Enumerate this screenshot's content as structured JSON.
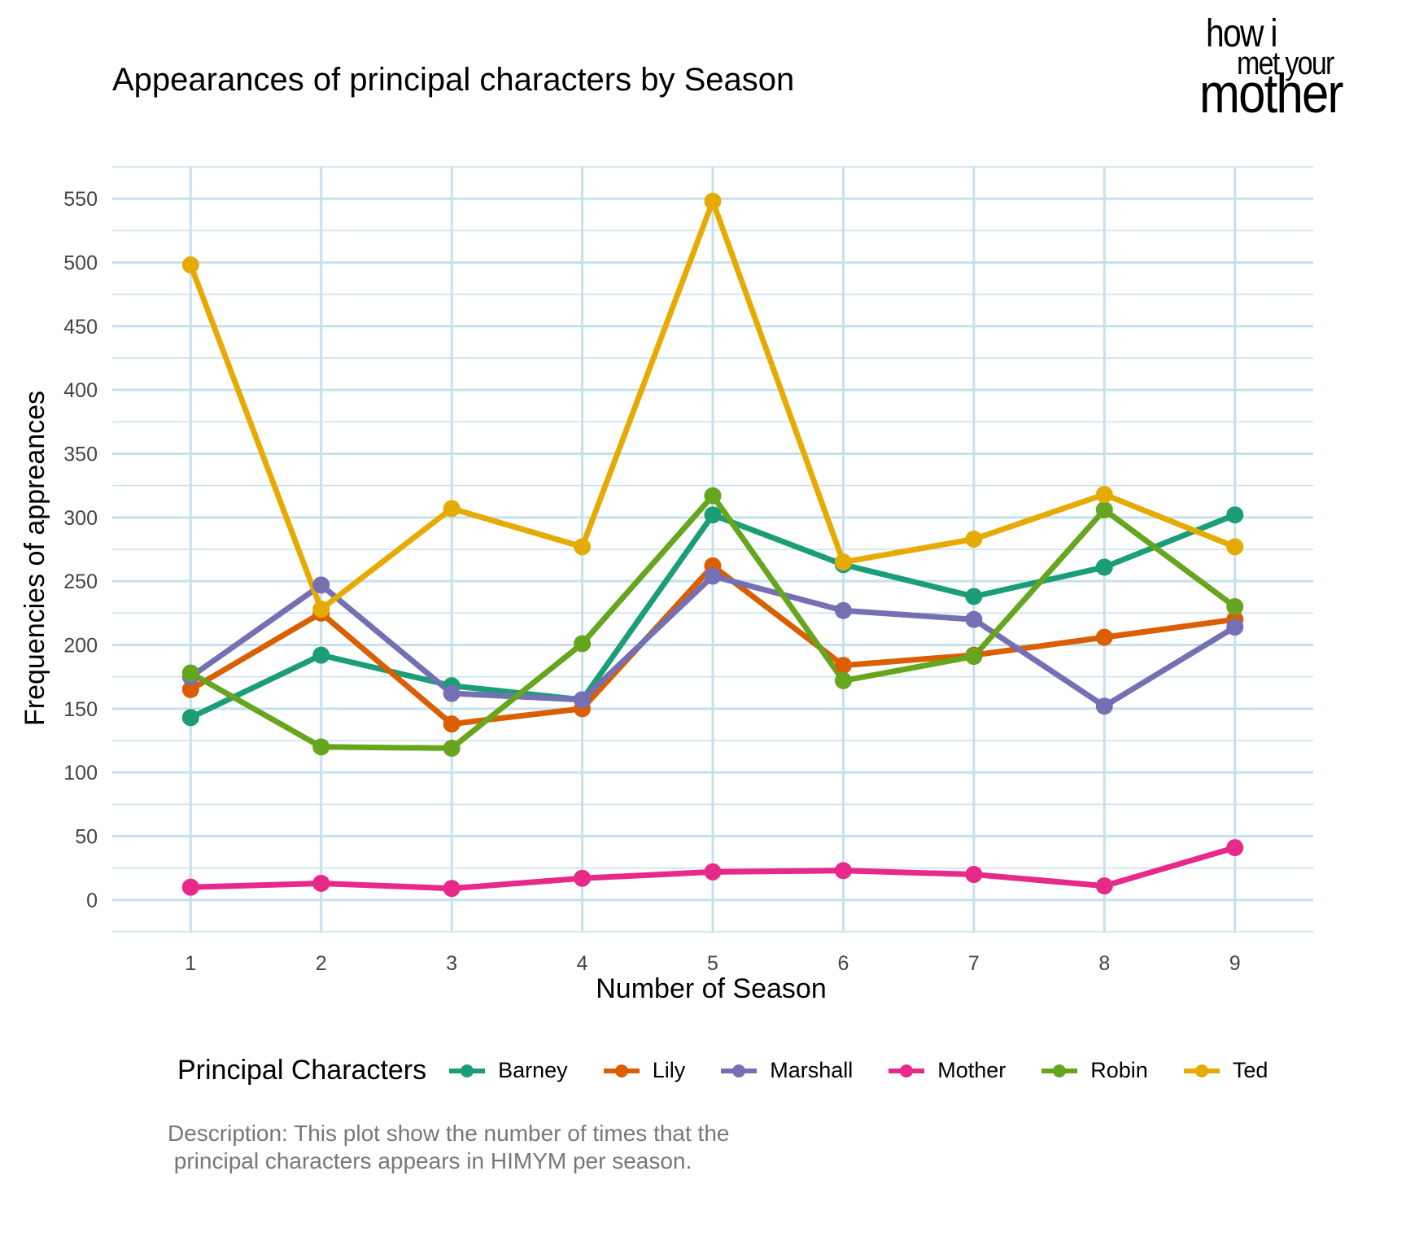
{
  "chart_data": {
    "type": "line",
    "title": "Appearances of principal characters by Season",
    "xlabel": "Number of Season",
    "ylabel": "Frequencies of appreances",
    "x": [
      1,
      2,
      3,
      4,
      5,
      6,
      7,
      8,
      9
    ],
    "x_ticks": [
      "1",
      "2",
      "3",
      "4",
      "5",
      "6",
      "7",
      "8",
      "9"
    ],
    "y_ticks": [
      "0",
      "50",
      "100",
      "150",
      "200",
      "250",
      "300",
      "350",
      "400",
      "450",
      "500",
      "550"
    ],
    "xlim": [
      0.4,
      9.6
    ],
    "ylim": [
      -25,
      575
    ],
    "grid": true,
    "legend_title": "Principal Characters",
    "legend_position": "bottom",
    "series": [
      {
        "name": "Barney",
        "color": "#1b9e77",
        "values": [
          143,
          192,
          168,
          157,
          302,
          263,
          238,
          261,
          302
        ]
      },
      {
        "name": "Lily",
        "color": "#d95f02",
        "values": [
          165,
          225,
          138,
          150,
          262,
          184,
          192,
          206,
          220
        ]
      },
      {
        "name": "Marshall",
        "color": "#7570b3",
        "values": [
          175,
          247,
          162,
          157,
          254,
          227,
          220,
          152,
          214
        ]
      },
      {
        "name": "Mother",
        "color": "#e7298a",
        "values": [
          10,
          13,
          9,
          17,
          22,
          23,
          20,
          11,
          41
        ]
      },
      {
        "name": "Robin",
        "color": "#66a61e",
        "values": [
          178,
          120,
          119,
          201,
          317,
          172,
          191,
          306,
          230
        ]
      },
      {
        "name": "Ted",
        "color": "#e6ab02",
        "values": [
          498,
          228,
          307,
          277,
          548,
          265,
          283,
          318,
          277
        ]
      }
    ]
  },
  "caption": "Description: This plot show the number of times that the\n principal characters appears in HIMYM per season.",
  "logo": {
    "line1": "how i",
    "line2": "met your",
    "line3": "mother"
  }
}
